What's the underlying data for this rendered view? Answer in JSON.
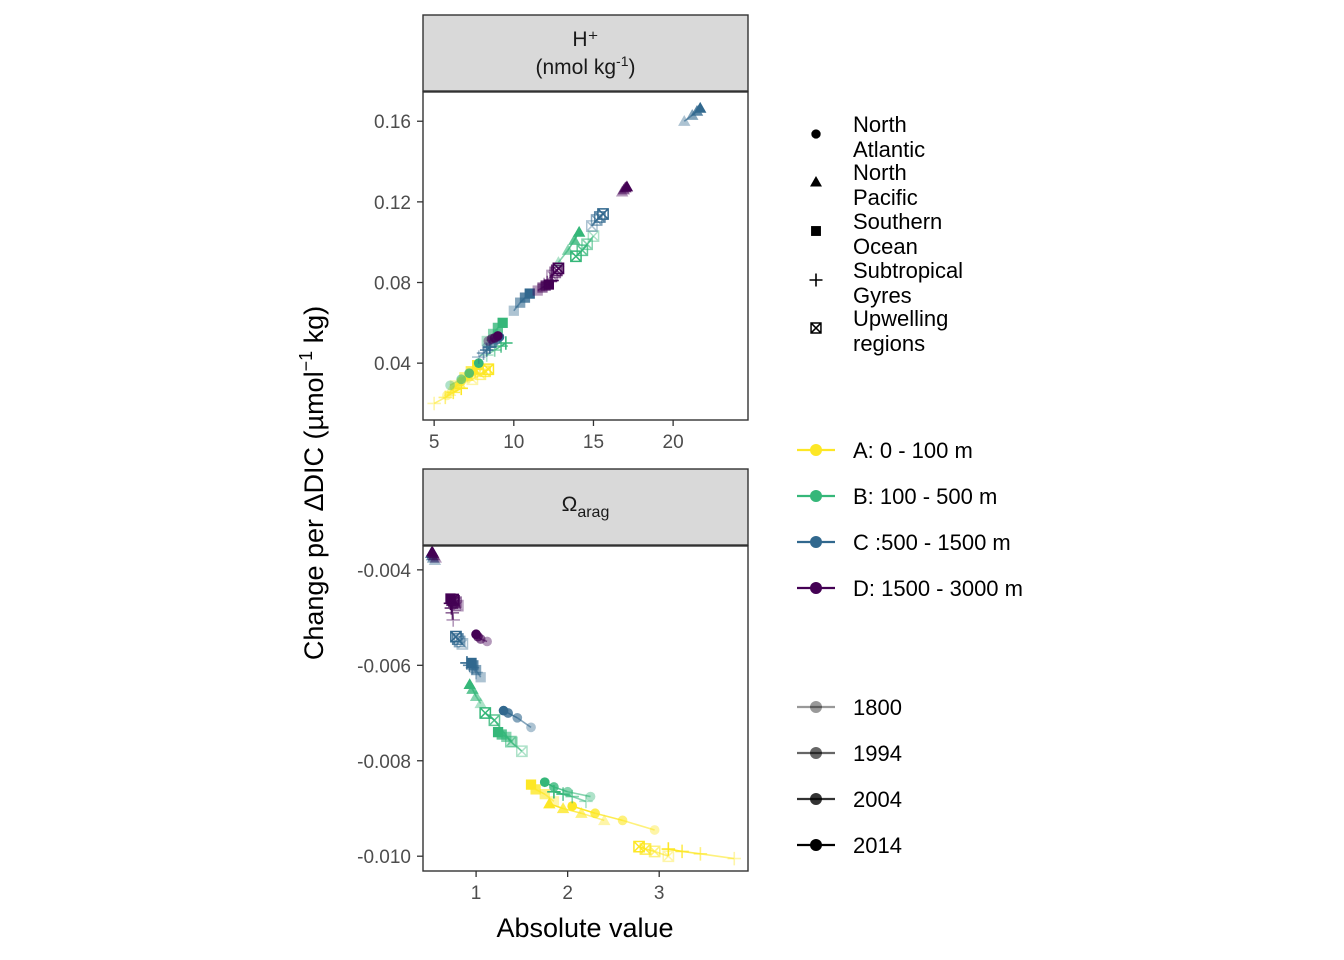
{
  "figure": {
    "y_title_main": "Change per ΔDIC (µmol",
    "y_title_sup": "−1",
    "y_title_tail": " kg)",
    "x_title": "Absolute value"
  },
  "legend": {
    "regions": [
      {
        "key": "na",
        "shape": "circle",
        "lines": [
          "North",
          "Atlantic"
        ]
      },
      {
        "key": "np",
        "shape": "triangle",
        "lines": [
          "North",
          "Pacific"
        ]
      },
      {
        "key": "so",
        "shape": "square",
        "lines": [
          "Southern",
          "Ocean"
        ]
      },
      {
        "key": "st",
        "shape": "plus",
        "lines": [
          "Subtropical",
          "Gyres"
        ]
      },
      {
        "key": "up",
        "shape": "crossbox",
        "lines": [
          "Upwelling",
          "regions"
        ]
      }
    ],
    "depths": [
      {
        "key": "A",
        "label": "A: 0 - 100 m",
        "color": "#FDE725"
      },
      {
        "key": "B",
        "label": "B: 100 - 500 m",
        "color": "#35B779"
      },
      {
        "key": "C",
        "label": "C :500 - 1500 m",
        "color": "#31688E"
      },
      {
        "key": "D",
        "label": "D: 1500 - 3000 m",
        "color": "#440154"
      }
    ],
    "years": [
      {
        "label": "1800",
        "alpha": 0.4
      },
      {
        "label": "1994",
        "alpha": 0.6
      },
      {
        "label": "2004",
        "alpha": 0.8
      },
      {
        "label": "2014",
        "alpha": 1.0
      }
    ]
  },
  "chart_data": [
    {
      "type": "scatter",
      "title": "H⁺",
      "subtitle_main": "(nmol kg",
      "subtitle_sup": "-1",
      "subtitle_tail": ")",
      "xlim": [
        4.3,
        24.7
      ],
      "ylim": [
        0.0118,
        0.1745
      ],
      "xticks": [
        5,
        10,
        15,
        20
      ],
      "yticks": [
        0.04,
        0.08,
        0.12,
        0.16
      ],
      "ytick_labels": [
        "0.04",
        "0.08",
        "0.12",
        "0.16"
      ],
      "series": [
        {
          "depth": "A",
          "region": "na",
          "points": [
            [
              5.8,
              0.024
            ],
            [
              6.3,
              0.028
            ],
            [
              6.7,
              0.031
            ],
            [
              7.2,
              0.0345
            ]
          ]
        },
        {
          "depth": "A",
          "region": "np",
          "points": [
            [
              6.0,
              0.026
            ],
            [
              6.6,
              0.03
            ],
            [
              7.1,
              0.0335
            ],
            [
              7.5,
              0.0365
            ]
          ]
        },
        {
          "depth": "A",
          "region": "so",
          "points": [
            [
              6.3,
              0.029
            ],
            [
              6.9,
              0.033
            ],
            [
              7.3,
              0.036
            ],
            [
              7.7,
              0.039
            ]
          ]
        },
        {
          "depth": "A",
          "region": "st",
          "points": [
            [
              5.0,
              0.02
            ],
            [
              5.7,
              0.023
            ],
            [
              6.2,
              0.0255
            ],
            [
              6.7,
              0.0275
            ]
          ]
        },
        {
          "depth": "A",
          "region": "up",
          "points": [
            [
              7.4,
              0.032
            ],
            [
              7.9,
              0.0345
            ],
            [
              8.2,
              0.036
            ],
            [
              8.4,
              0.037
            ]
          ]
        },
        {
          "depth": "B",
          "region": "na",
          "points": [
            [
              6.0,
              0.029
            ],
            [
              6.7,
              0.032
            ],
            [
              7.2,
              0.035
            ],
            [
              7.8,
              0.04
            ]
          ]
        },
        {
          "depth": "B",
          "region": "np",
          "points": [
            [
              12.8,
              0.09
            ],
            [
              13.4,
              0.096
            ],
            [
              13.8,
              0.101
            ],
            [
              14.1,
              0.105
            ]
          ]
        },
        {
          "depth": "B",
          "region": "so",
          "points": [
            [
              8.3,
              0.051
            ],
            [
              8.7,
              0.0545
            ],
            [
              9.0,
              0.0575
            ],
            [
              9.3,
              0.06
            ]
          ]
        },
        {
          "depth": "B",
          "region": "st",
          "points": [
            [
              8.3,
              0.044
            ],
            [
              8.8,
              0.0465
            ],
            [
              9.2,
              0.0485
            ],
            [
              9.5,
              0.05
            ]
          ]
        },
        {
          "depth": "B",
          "region": "up",
          "points": [
            [
              15.0,
              0.103
            ],
            [
              14.6,
              0.099
            ],
            [
              14.3,
              0.096
            ],
            [
              13.9,
              0.093
            ]
          ]
        },
        {
          "depth": "C",
          "region": "na",
          "points": [
            [
              8.3,
              0.048
            ],
            [
              8.7,
              0.05
            ],
            [
              8.9,
              0.0515
            ],
            [
              9.1,
              0.053
            ]
          ]
        },
        {
          "depth": "C",
          "region": "np",
          "points": [
            [
              20.7,
              0.16
            ],
            [
              21.2,
              0.163
            ],
            [
              21.5,
              0.165
            ],
            [
              21.7,
              0.1665
            ]
          ]
        },
        {
          "depth": "C",
          "region": "so",
          "points": [
            [
              10.0,
              0.066
            ],
            [
              10.4,
              0.07
            ],
            [
              10.7,
              0.0725
            ],
            [
              11.0,
              0.0745
            ]
          ]
        },
        {
          "depth": "C",
          "region": "st",
          "points": [
            [
              7.8,
              0.043
            ],
            [
              8.1,
              0.045
            ],
            [
              8.3,
              0.0465
            ],
            [
              8.5,
              0.048
            ]
          ]
        },
        {
          "depth": "C",
          "region": "up",
          "points": [
            [
              14.9,
              0.108
            ],
            [
              15.2,
              0.111
            ],
            [
              15.4,
              0.1125
            ],
            [
              15.6,
              0.114
            ]
          ]
        },
        {
          "depth": "D",
          "region": "na",
          "points": [
            [
              8.4,
              0.051
            ],
            [
              8.6,
              0.052
            ],
            [
              8.8,
              0.0525
            ],
            [
              9.0,
              0.0535
            ]
          ]
        },
        {
          "depth": "D",
          "region": "np",
          "points": [
            [
              16.8,
              0.125
            ],
            [
              16.9,
              0.126
            ],
            [
              17.0,
              0.127
            ],
            [
              17.1,
              0.1275
            ]
          ]
        },
        {
          "depth": "D",
          "region": "so",
          "points": [
            [
              11.5,
              0.076
            ],
            [
              11.8,
              0.0775
            ],
            [
              12.0,
              0.0785
            ],
            [
              12.2,
              0.079
            ]
          ]
        },
        {
          "depth": "D",
          "region": "st",
          "points": [
            [
              11.9,
              0.079
            ],
            [
              12.1,
              0.08
            ],
            [
              12.3,
              0.0805
            ],
            [
              12.4,
              0.081
            ]
          ]
        },
        {
          "depth": "D",
          "region": "up",
          "points": [
            [
              12.4,
              0.0835
            ],
            [
              12.6,
              0.085
            ],
            [
              12.7,
              0.086
            ],
            [
              12.8,
              0.087
            ]
          ]
        }
      ]
    },
    {
      "type": "scatter",
      "title": "Ω",
      "title_sub": "arag",
      "xlim": [
        0.42,
        3.97
      ],
      "ylim": [
        -0.01031,
        -0.0035
      ],
      "xticks": [
        1,
        2,
        3
      ],
      "yticks": [
        -0.004,
        -0.006,
        -0.008,
        -0.01
      ],
      "ytick_labels": [
        "-0.004",
        "-0.006",
        "-0.008",
        "-0.010"
      ],
      "series": [
        {
          "depth": "A",
          "region": "na",
          "points": [
            [
              2.95,
              -0.00945
            ],
            [
              2.6,
              -0.00925
            ],
            [
              2.3,
              -0.0091
            ],
            [
              2.05,
              -0.00895
            ]
          ]
        },
        {
          "depth": "A",
          "region": "np",
          "points": [
            [
              2.4,
              -0.00925
            ],
            [
              2.15,
              -0.0091
            ],
            [
              1.95,
              -0.009
            ],
            [
              1.8,
              -0.0089
            ]
          ]
        },
        {
          "depth": "A",
          "region": "so",
          "points": [
            [
              1.85,
              -0.00885
            ],
            [
              1.75,
              -0.0087
            ],
            [
              1.65,
              -0.0086
            ],
            [
              1.6,
              -0.0085
            ]
          ]
        },
        {
          "depth": "A",
          "region": "st",
          "points": [
            [
              3.82,
              -0.01005
            ],
            [
              3.45,
              -0.00995
            ],
            [
              3.25,
              -0.0099
            ],
            [
              3.1,
              -0.00985
            ]
          ]
        },
        {
          "depth": "A",
          "region": "up",
          "points": [
            [
              3.1,
              -0.01
            ],
            [
              2.95,
              -0.0099
            ],
            [
              2.85,
              -0.00985
            ],
            [
              2.78,
              -0.0098
            ]
          ]
        },
        {
          "depth": "B",
          "region": "na",
          "points": [
            [
              2.25,
              -0.00875
            ],
            [
              2.0,
              -0.00865
            ],
            [
              1.85,
              -0.00855
            ],
            [
              1.75,
              -0.00845
            ]
          ]
        },
        {
          "depth": "B",
          "region": "np",
          "points": [
            [
              1.05,
              -0.0068
            ],
            [
              1.0,
              -0.00665
            ],
            [
              0.96,
              -0.0065
            ],
            [
              0.93,
              -0.0064
            ]
          ]
        },
        {
          "depth": "B",
          "region": "so",
          "points": [
            [
              1.4,
              -0.0076
            ],
            [
              1.33,
              -0.0075
            ],
            [
              1.28,
              -0.00745
            ],
            [
              1.24,
              -0.0074
            ]
          ]
        },
        {
          "depth": "B",
          "region": "st",
          "points": [
            [
              2.2,
              -0.00885
            ],
            [
              2.05,
              -0.00875
            ],
            [
              1.95,
              -0.0087
            ],
            [
              1.85,
              -0.00865
            ]
          ]
        },
        {
          "depth": "B",
          "region": "up",
          "points": [
            [
              1.5,
              -0.0078
            ],
            [
              1.38,
              -0.0076
            ],
            [
              1.2,
              -0.00715
            ],
            [
              1.1,
              -0.007
            ]
          ]
        },
        {
          "depth": "C",
          "region": "na",
          "points": [
            [
              1.6,
              -0.0073
            ],
            [
              1.45,
              -0.0071
            ],
            [
              1.35,
              -0.007
            ],
            [
              1.3,
              -0.00695
            ]
          ]
        },
        {
          "depth": "C",
          "region": "np",
          "points": [
            [
              0.55,
              -0.0038
            ],
            [
              0.53,
              -0.00375
            ],
            [
              0.52,
              -0.0037
            ],
            [
              0.51,
              -0.00365
            ]
          ]
        },
        {
          "depth": "C",
          "region": "so",
          "points": [
            [
              1.05,
              -0.00625
            ],
            [
              1.0,
              -0.0061
            ],
            [
              0.97,
              -0.006
            ],
            [
              0.95,
              -0.00595
            ]
          ]
        },
        {
          "depth": "C",
          "region": "st",
          "points": [
            [
              1.0,
              -0.00615
            ],
            [
              0.96,
              -0.00605
            ],
            [
              0.93,
              -0.006
            ],
            [
              0.9,
              -0.00595
            ]
          ]
        },
        {
          "depth": "C",
          "region": "up",
          "points": [
            [
              0.85,
              -0.00555
            ],
            [
              0.82,
              -0.0055
            ],
            [
              0.8,
              -0.00545
            ],
            [
              0.78,
              -0.0054
            ]
          ]
        },
        {
          "depth": "D",
          "region": "na",
          "points": [
            [
              1.12,
              -0.0055
            ],
            [
              1.05,
              -0.00545
            ],
            [
              1.02,
              -0.0054
            ],
            [
              1.0,
              -0.00535
            ]
          ]
        },
        {
          "depth": "D",
          "region": "np",
          "points": [
            [
              0.56,
              -0.00375
            ],
            [
              0.54,
              -0.0037
            ],
            [
              0.53,
              -0.00365
            ],
            [
              0.52,
              -0.00362
            ]
          ]
        },
        {
          "depth": "D",
          "region": "so",
          "points": [
            [
              0.78,
              -0.00475
            ],
            [
              0.75,
              -0.00468
            ],
            [
              0.73,
              -0.00465
            ],
            [
              0.72,
              -0.0046
            ]
          ]
        },
        {
          "depth": "D",
          "region": "st",
          "points": [
            [
              0.75,
              -0.00505
            ],
            [
              0.74,
              -0.0049
            ],
            [
              0.73,
              -0.0048
            ],
            [
              0.72,
              -0.0047
            ]
          ]
        },
        {
          "depth": "D",
          "region": "up",
          "points": [
            [
              0.8,
              -0.00475
            ],
            [
              0.78,
              -0.00468
            ],
            [
              0.76,
              -0.00465
            ],
            [
              0.75,
              -0.00462
            ]
          ]
        }
      ]
    }
  ]
}
